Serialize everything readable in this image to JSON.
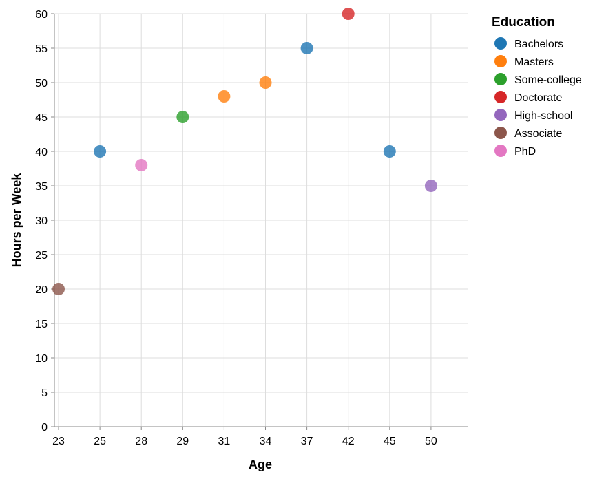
{
  "chart_data": {
    "type": "scatter",
    "xlabel": "Age",
    "ylabel": "Hours per Week",
    "x_scale": "point",
    "x_categories": [
      "23",
      "25",
      "28",
      "29",
      "31",
      "34",
      "37",
      "42",
      "45",
      "50"
    ],
    "y_ticks": [
      0,
      5,
      10,
      15,
      20,
      25,
      30,
      35,
      40,
      45,
      50,
      55,
      60
    ],
    "ylim": [
      0,
      60
    ],
    "grid": true,
    "legend": {
      "title": "Education",
      "placement": "right",
      "entries": [
        {
          "name": "Bachelors",
          "color": "#1f77b4"
        },
        {
          "name": "Masters",
          "color": "#ff7f0e"
        },
        {
          "name": "Some-college",
          "color": "#2ca02c"
        },
        {
          "name": "Doctorate",
          "color": "#d62728"
        },
        {
          "name": "High-school",
          "color": "#9467bd"
        },
        {
          "name": "Associate",
          "color": "#8c564b"
        },
        {
          "name": "PhD",
          "color": "#e377c2"
        }
      ]
    },
    "points": [
      {
        "x": "23",
        "y": 20,
        "education": "Associate"
      },
      {
        "x": "25",
        "y": 40,
        "education": "Bachelors"
      },
      {
        "x": "28",
        "y": 38,
        "education": "PhD"
      },
      {
        "x": "29",
        "y": 45,
        "education": "Some-college"
      },
      {
        "x": "31",
        "y": 48,
        "education": "Masters"
      },
      {
        "x": "34",
        "y": 50,
        "education": "Masters"
      },
      {
        "x": "37",
        "y": 55,
        "education": "Bachelors"
      },
      {
        "x": "42",
        "y": 60,
        "education": "Doctorate"
      },
      {
        "x": "45",
        "y": 40,
        "education": "Bachelors"
      },
      {
        "x": "50",
        "y": 35,
        "education": "High-school"
      }
    ]
  }
}
